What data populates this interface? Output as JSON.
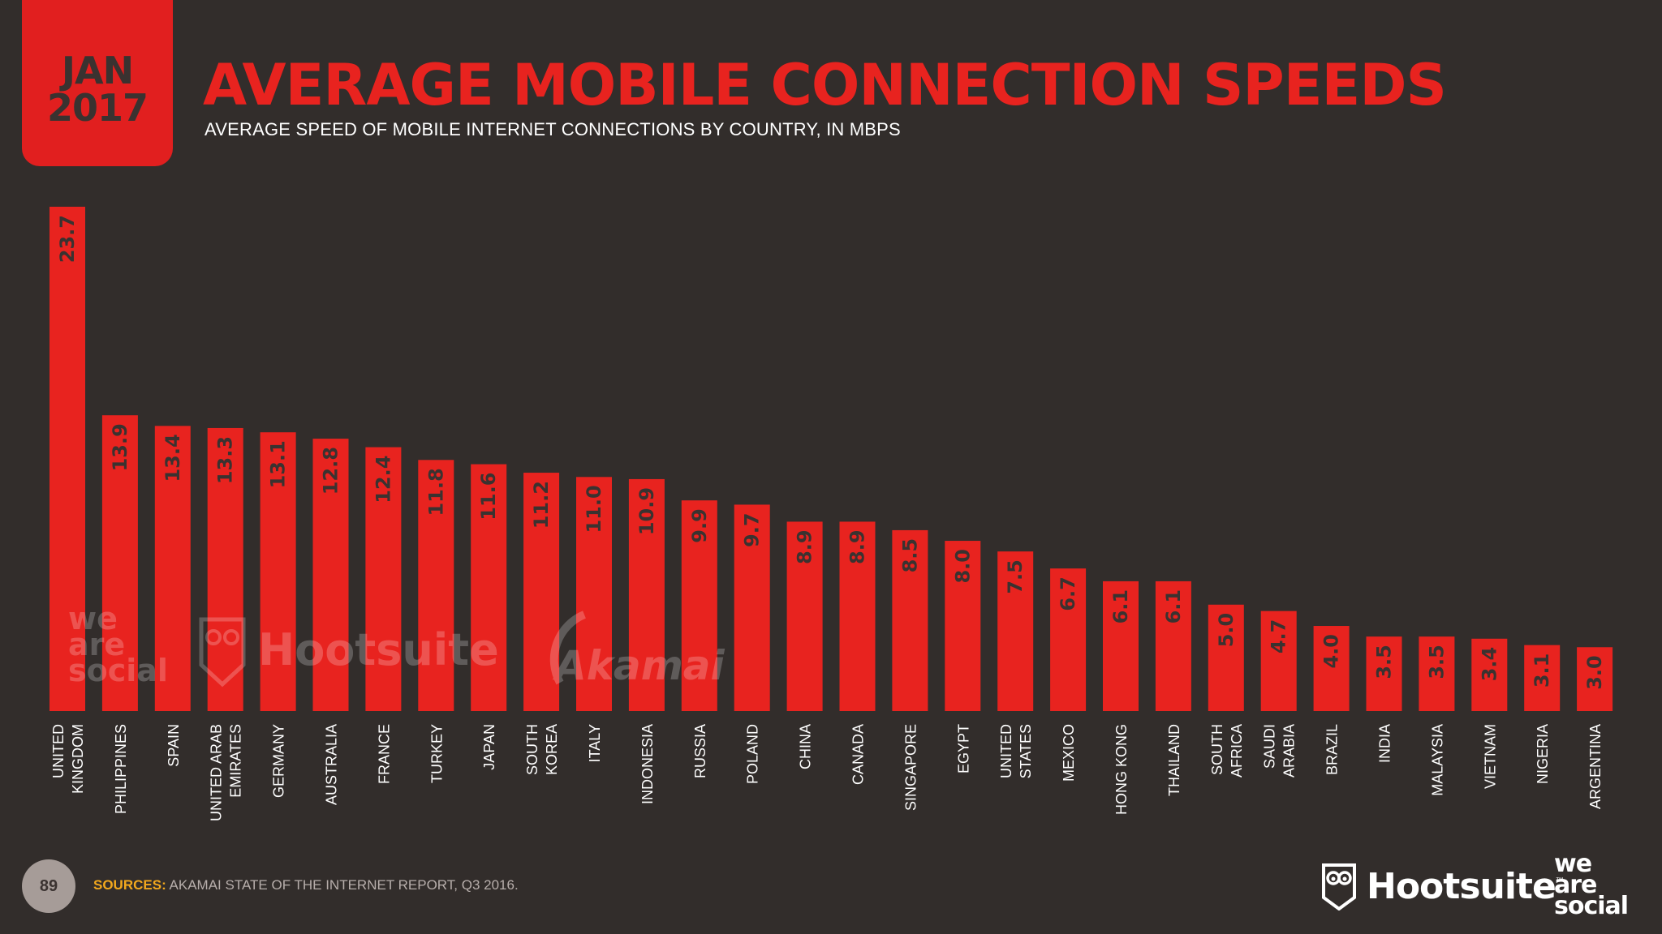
{
  "header": {
    "date_line1": "JAN",
    "date_line2": "2017",
    "title": "AVERAGE MOBILE CONNECTION SPEEDS",
    "subtitle": "AVERAGE SPEED OF MOBILE INTERNET CONNECTIONS BY COUNTRY, IN MBPS"
  },
  "colors": {
    "background": "#322d2b",
    "bar": "#e8231f",
    "accent": "#e11f1f",
    "source_label": "#f2a81d"
  },
  "chart_data": {
    "type": "bar",
    "title": "AVERAGE MOBILE CONNECTION SPEEDS",
    "subtitle": "AVERAGE SPEED OF MOBILE INTERNET CONNECTIONS BY COUNTRY, IN MBPS",
    "categories": [
      [
        "UNITED",
        "KINGDOM"
      ],
      [
        "PHILIPPINES"
      ],
      [
        "SPAIN"
      ],
      [
        "UNITED ARAB",
        "EMIRATES"
      ],
      [
        "GERMANY"
      ],
      [
        "AUSTRALIA"
      ],
      [
        "FRANCE"
      ],
      [
        "TURKEY"
      ],
      [
        "JAPAN"
      ],
      [
        "SOUTH",
        "KOREA"
      ],
      [
        "ITALY"
      ],
      [
        "INDONESIA"
      ],
      [
        "RUSSIA"
      ],
      [
        "POLAND"
      ],
      [
        "CHINA"
      ],
      [
        "CANADA"
      ],
      [
        "SINGAPORE"
      ],
      [
        "EGYPT"
      ],
      [
        "UNITED",
        "STATES"
      ],
      [
        "MEXICO"
      ],
      [
        "HONG KONG"
      ],
      [
        "THAILAND"
      ],
      [
        "SOUTH",
        "AFRICA"
      ],
      [
        "SAUDI",
        "ARABIA"
      ],
      [
        "BRAZIL"
      ],
      [
        "INDIA"
      ],
      [
        "MALAYSIA"
      ],
      [
        "VIETNAM"
      ],
      [
        "NIGERIA"
      ],
      [
        "ARGENTINA"
      ]
    ],
    "values": [
      23.7,
      13.9,
      13.4,
      13.3,
      13.1,
      12.8,
      12.4,
      11.8,
      11.6,
      11.2,
      11.0,
      10.9,
      9.9,
      9.7,
      8.9,
      8.9,
      8.5,
      8.0,
      7.5,
      6.7,
      6.1,
      6.1,
      5.0,
      4.7,
      4.0,
      3.5,
      3.5,
      3.4,
      3.1,
      3.0
    ],
    "labels": [
      "23.7",
      "13.9",
      "13.4",
      "13.3",
      "13.1",
      "12.8",
      "12.4",
      "11.8",
      "11.6",
      "11.2",
      "11.0",
      "10.9",
      "9.9",
      "9.7",
      "8.9",
      "8.9",
      "8.5",
      "8.0",
      "7.5",
      "6.7",
      "6.1",
      "6.1",
      "5.0",
      "4.7",
      "4.0",
      "3.5",
      "3.5",
      "3.4",
      "3.1",
      "3.0"
    ],
    "ylim": [
      0,
      23.7
    ],
    "grid": false,
    "legend": "none"
  },
  "watermarks": {
    "was_lines": [
      "we",
      "are",
      "social"
    ],
    "hootsuite": "Hootsuite",
    "akamai": "Akamai"
  },
  "footer": {
    "page_number": "89",
    "source_label": "SOURCES:",
    "source_text": " AKAMAI STATE OF THE INTERNET REPORT, Q3 2016.",
    "brand_hootsuite": "Hootsuite",
    "brand_tm": "™",
    "brand_was_lines": [
      "we",
      "are",
      "social"
    ]
  }
}
